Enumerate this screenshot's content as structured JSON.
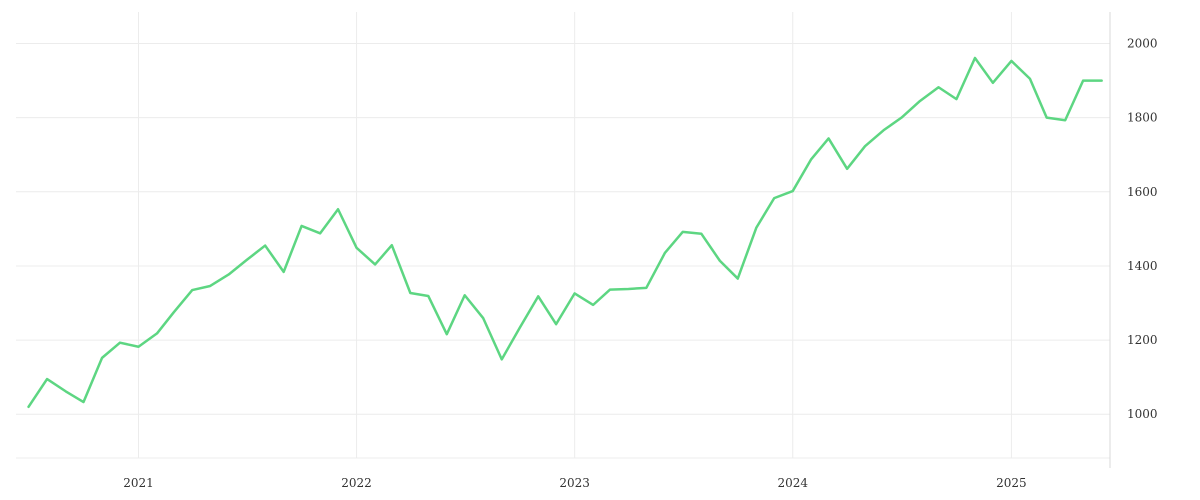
{
  "chart_data": {
    "type": "line",
    "title": "",
    "xlabel": "",
    "ylabel": "",
    "x_tick_labels": [
      "2021",
      "2022",
      "2023",
      "2024",
      "2025"
    ],
    "y_tick_labels": [
      "1000",
      "1200",
      "1400",
      "1600",
      "1800",
      "2000"
    ],
    "xlim": [
      "2020-06-10",
      "2025-06-15"
    ],
    "ylim": [
      855,
      2085
    ],
    "grid": true,
    "legend": "none",
    "series": [
      {
        "color": "#5dd682",
        "points": [
          [
            "2020-07-01",
            1020
          ],
          [
            "2020-08-01",
            1095
          ],
          [
            "2020-09-01",
            1062
          ],
          [
            "2020-10-01",
            1033
          ],
          [
            "2020-11-01",
            1152
          ],
          [
            "2020-12-01",
            1193
          ],
          [
            "2021-01-01",
            1182
          ],
          [
            "2021-02-01",
            1218
          ],
          [
            "2021-03-01",
            1275
          ],
          [
            "2021-04-01",
            1335
          ],
          [
            "2021-05-01",
            1346
          ],
          [
            "2021-06-01",
            1377
          ],
          [
            "2021-07-01",
            1416
          ],
          [
            "2021-08-01",
            1455
          ],
          [
            "2021-09-01",
            1384
          ],
          [
            "2021-10-01",
            1508
          ],
          [
            "2021-11-01",
            1488
          ],
          [
            "2021-12-01",
            1553
          ],
          [
            "2022-01-01",
            1449
          ],
          [
            "2022-02-01",
            1404
          ],
          [
            "2022-03-01",
            1456
          ],
          [
            "2022-04-01",
            1327
          ],
          [
            "2022-05-01",
            1319
          ],
          [
            "2022-06-01",
            1216
          ],
          [
            "2022-07-01",
            1321
          ],
          [
            "2022-08-01",
            1259
          ],
          [
            "2022-09-01",
            1148
          ],
          [
            "2022-10-01",
            1233
          ],
          [
            "2022-11-01",
            1318
          ],
          [
            "2022-12-01",
            1243
          ],
          [
            "2023-01-01",
            1326
          ],
          [
            "2023-02-01",
            1295
          ],
          [
            "2023-03-01",
            1336
          ],
          [
            "2023-04-01",
            1338
          ],
          [
            "2023-05-01",
            1341
          ],
          [
            "2023-06-01",
            1435
          ],
          [
            "2023-07-01",
            1492
          ],
          [
            "2023-08-01",
            1487
          ],
          [
            "2023-09-01",
            1414
          ],
          [
            "2023-10-01",
            1366
          ],
          [
            "2023-11-01",
            1503
          ],
          [
            "2023-12-01",
            1583
          ],
          [
            "2024-01-01",
            1602
          ],
          [
            "2024-02-01",
            1688
          ],
          [
            "2024-03-01",
            1744
          ],
          [
            "2024-04-01",
            1662
          ],
          [
            "2024-05-01",
            1723
          ],
          [
            "2024-06-01",
            1766
          ],
          [
            "2024-07-01",
            1800
          ],
          [
            "2024-08-01",
            1845
          ],
          [
            "2024-09-01",
            1882
          ],
          [
            "2024-10-01",
            1850
          ],
          [
            "2024-11-01",
            1961
          ],
          [
            "2024-12-01",
            1894
          ],
          [
            "2025-01-01",
            1953
          ],
          [
            "2025-02-01",
            1905
          ],
          [
            "2025-03-01",
            1800
          ],
          [
            "2025-04-01",
            1793
          ],
          [
            "2025-05-01",
            1900
          ],
          [
            "2025-06-01",
            1900
          ]
        ]
      }
    ]
  }
}
